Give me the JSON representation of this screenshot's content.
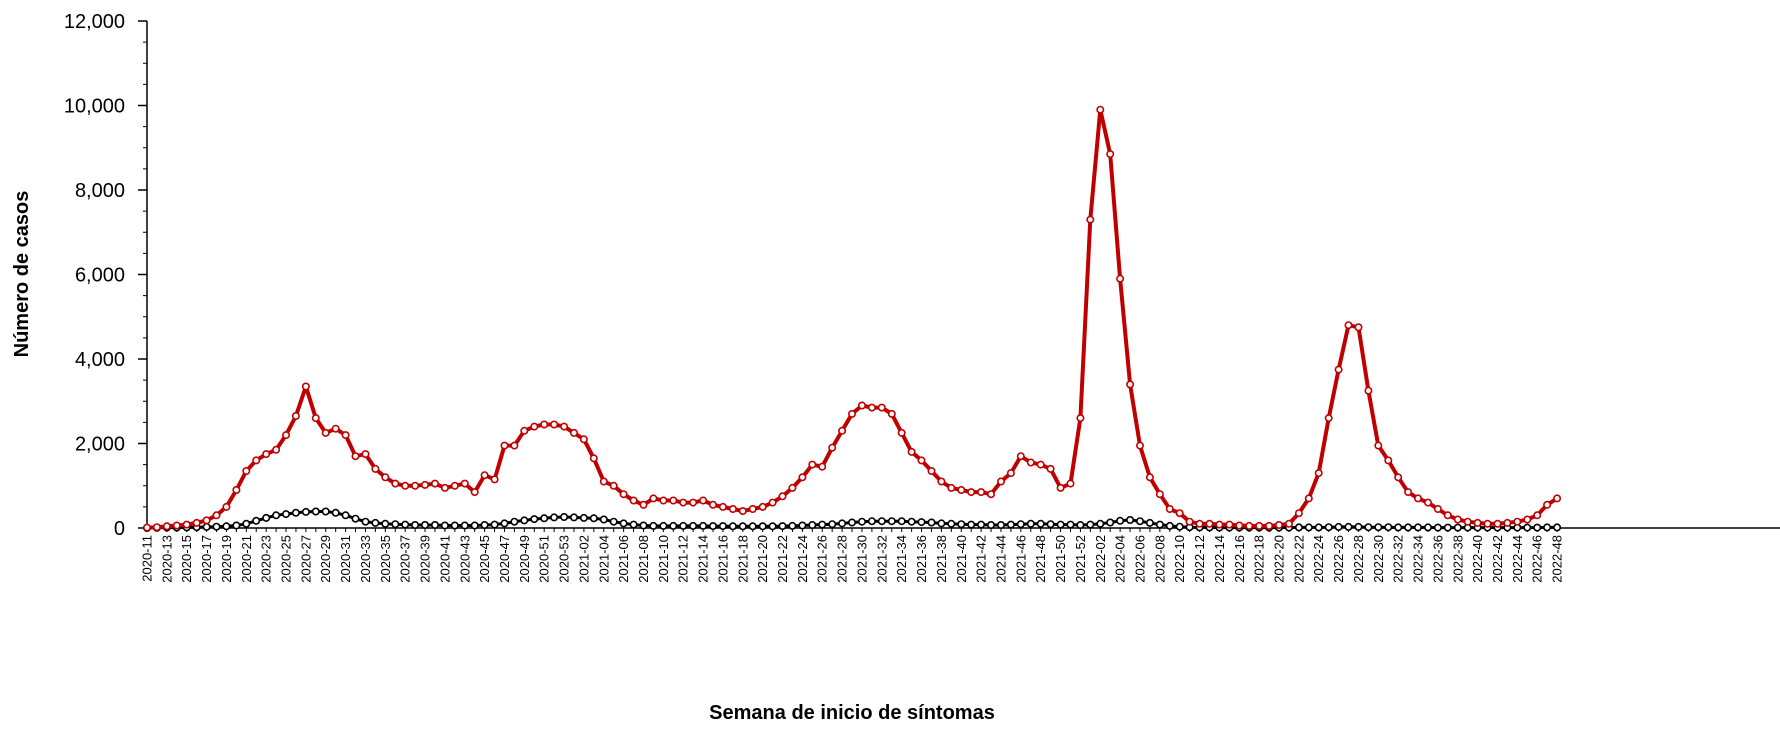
{
  "chart_data": {
    "type": "line",
    "xlabel": "Semana de inicio de síntomas",
    "ylabel": "Número de casos",
    "ylim": [
      0,
      12000
    ],
    "yticks": [
      "0",
      "2,000",
      "4,000",
      "6,000",
      "8,000",
      "10,000",
      "12,000"
    ],
    "y_tick_values": [
      0,
      2000,
      4000,
      6000,
      8000,
      10000,
      12000
    ],
    "grid": false,
    "legend": "none",
    "categories": [
      "2020-11",
      "2020-12",
      "2020-13",
      "2020-14",
      "2020-15",
      "2020-16",
      "2020-17",
      "2020-18",
      "2020-19",
      "2020-20",
      "2020-21",
      "2020-22",
      "2020-23",
      "2020-24",
      "2020-25",
      "2020-26",
      "2020-27",
      "2020-28",
      "2020-29",
      "2020-30",
      "2020-31",
      "2020-32",
      "2020-33",
      "2020-34",
      "2020-35",
      "2020-36",
      "2020-37",
      "2020-38",
      "2020-39",
      "2020-40",
      "2020-41",
      "2020-42",
      "2020-43",
      "2020-44",
      "2020-45",
      "2020-46",
      "2020-47",
      "2020-48",
      "2020-49",
      "2020-50",
      "2020-51",
      "2020-52",
      "2020-53",
      "2021-01",
      "2021-02",
      "2021-03",
      "2021-04",
      "2021-05",
      "2021-06",
      "2021-07",
      "2021-08",
      "2021-09",
      "2021-10",
      "2021-11",
      "2021-12",
      "2021-13",
      "2021-14",
      "2021-15",
      "2021-16",
      "2021-17",
      "2021-18",
      "2021-19",
      "2021-20",
      "2021-21",
      "2021-22",
      "2021-23",
      "2021-24",
      "2021-25",
      "2021-26",
      "2021-27",
      "2021-28",
      "2021-29",
      "2021-30",
      "2021-31",
      "2021-32",
      "2021-33",
      "2021-34",
      "2021-35",
      "2021-36",
      "2021-37",
      "2021-38",
      "2021-39",
      "2021-40",
      "2021-41",
      "2021-42",
      "2021-43",
      "2021-44",
      "2021-45",
      "2021-46",
      "2021-47",
      "2021-48",
      "2021-49",
      "2021-50",
      "2021-51",
      "2021-52",
      "2022-01",
      "2022-02",
      "2022-03",
      "2022-04",
      "2022-05",
      "2022-06",
      "2022-07",
      "2022-08",
      "2022-09",
      "2022-10",
      "2022-11",
      "2022-12",
      "2022-13",
      "2022-14",
      "2022-15",
      "2022-16",
      "2022-17",
      "2022-18",
      "2022-19",
      "2022-20",
      "2022-21",
      "2022-22",
      "2022-23",
      "2022-24",
      "2022-25",
      "2022-26",
      "2022-27",
      "2022-28",
      "2022-29",
      "2022-30",
      "2022-31",
      "2022-32",
      "2022-33",
      "2022-34",
      "2022-35",
      "2022-36",
      "2022-37",
      "2022-38",
      "2022-39",
      "2022-40",
      "2022-41",
      "2022-42",
      "2022-43",
      "2022-44",
      "2022-45",
      "2022-46",
      "2022-47",
      "2022-48"
    ],
    "series": [
      {
        "color": "#c00000",
        "values": [
          10,
          20,
          40,
          60,
          80,
          120,
          180,
          300,
          500,
          900,
          1350,
          1600,
          1750,
          1850,
          2200,
          2650,
          3350,
          2600,
          2250,
          2350,
          2200,
          1700,
          1750,
          1400,
          1200,
          1050,
          1000,
          1000,
          1020,
          1050,
          950,
          1000,
          1050,
          850,
          1250,
          1150,
          1950,
          1950,
          2300,
          2400,
          2450,
          2450,
          2400,
          2250,
          2100,
          1650,
          1100,
          1000,
          800,
          650,
          550,
          700,
          650,
          650,
          600,
          600,
          650,
          550,
          500,
          450,
          400,
          450,
          500,
          600,
          750,
          950,
          1200,
          1500,
          1450,
          1900,
          2300,
          2700,
          2900,
          2850,
          2850,
          2700,
          2250,
          1800,
          1600,
          1350,
          1100,
          950,
          900,
          850,
          850,
          800,
          1100,
          1300,
          1700,
          1550,
          1500,
          1400,
          950,
          1050,
          2600,
          7300,
          9900,
          8850,
          5900,
          3400,
          1950,
          1200,
          800,
          450,
          350,
          150,
          100,
          100,
          80,
          80,
          60,
          50,
          50,
          50,
          70,
          100,
          350,
          700,
          1300,
          2600,
          3750,
          4800,
          4750,
          3250,
          1950,
          1600,
          1200,
          850,
          700,
          600,
          450,
          300,
          200,
          150,
          120,
          100,
          100,
          120,
          150,
          200,
          300,
          550,
          700
        ]
      },
      {
        "color": "#000000",
        "values": [
          0,
          5,
          10,
          10,
          15,
          20,
          25,
          30,
          40,
          60,
          100,
          170,
          240,
          300,
          330,
          360,
          380,
          390,
          390,
          360,
          300,
          220,
          150,
          120,
          100,
          90,
          80,
          70,
          70,
          70,
          60,
          60,
          60,
          60,
          70,
          80,
          110,
          150,
          180,
          210,
          230,
          250,
          260,
          250,
          240,
          230,
          200,
          150,
          110,
          80,
          60,
          50,
          50,
          50,
          50,
          50,
          50,
          45,
          45,
          40,
          40,
          40,
          40,
          40,
          45,
          50,
          60,
          70,
          80,
          90,
          110,
          130,
          150,
          160,
          160,
          160,
          160,
          150,
          140,
          130,
          110,
          100,
          90,
          80,
          80,
          70,
          70,
          80,
          90,
          100,
          100,
          90,
          80,
          80,
          70,
          80,
          100,
          130,
          170,
          190,
          160,
          120,
          80,
          50,
          30,
          20,
          15,
          15,
          10,
          10,
          10,
          10,
          10,
          10,
          10,
          10,
          15,
          15,
          15,
          20,
          25,
          25,
          25,
          20,
          20,
          20,
          15,
          15,
          15,
          15,
          10,
          10,
          10,
          10,
          10,
          10,
          10,
          10,
          10,
          10,
          10,
          15,
          15
        ]
      }
    ]
  }
}
